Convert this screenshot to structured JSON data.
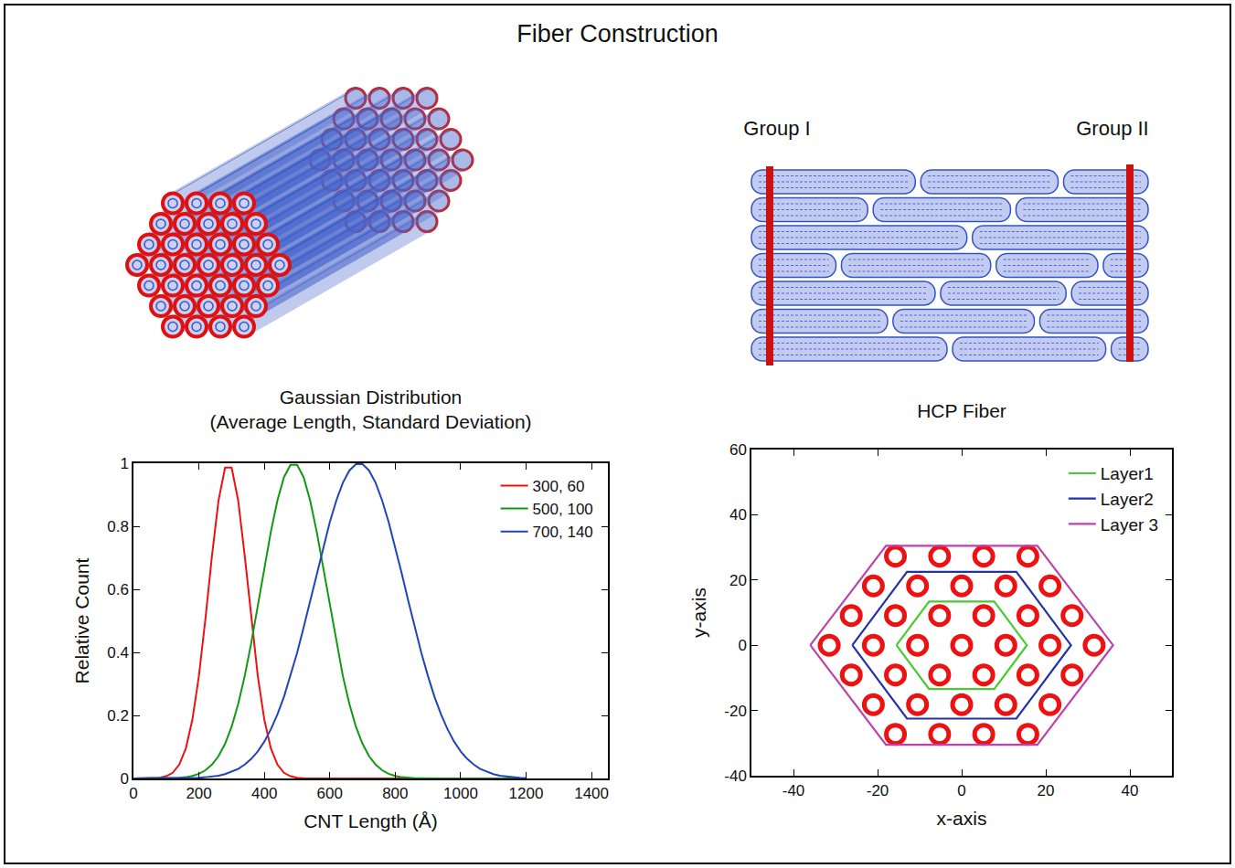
{
  "title": "Fiber Construction",
  "panels": {
    "side_view": {
      "group_labels": [
        "Group I",
        "Group II"
      ]
    }
  },
  "chart_data": [
    {
      "type": "line",
      "title": "Gaussian Distribution",
      "subtitle": "(Average Length, Standard Deviation)",
      "x_label": "CNT Length (Å)",
      "y_label": "Relative Count",
      "x": [
        0,
        20,
        40,
        60,
        80,
        100,
        120,
        140,
        160,
        180,
        200,
        220,
        240,
        260,
        280,
        300,
        320,
        340,
        360,
        380,
        400,
        420,
        440,
        460,
        480,
        500,
        520,
        540,
        560,
        580,
        600,
        620,
        640,
        660,
        680,
        700,
        720,
        740,
        760,
        780,
        800,
        820,
        840,
        860,
        880,
        900,
        920,
        940,
        960,
        980,
        1000,
        1020,
        1040,
        1060,
        1080,
        1100,
        1120,
        1140,
        1160,
        1180,
        1200
      ],
      "series": [
        {
          "name": "300, 60",
          "color": "#ee1111",
          "values": [
            0,
            0,
            0,
            0.001,
            0.002,
            0.007,
            0.018,
            0.044,
            0.095,
            0.186,
            0.325,
            0.507,
            0.707,
            0.882,
            0.986,
            0.986,
            0.882,
            0.707,
            0.507,
            0.325,
            0.186,
            0.095,
            0.044,
            0.018,
            0.007,
            0.002,
            0.001,
            0,
            0,
            0,
            0,
            0,
            0,
            0,
            0,
            0,
            0,
            0,
            0,
            0,
            0,
            0,
            0,
            0,
            0,
            0,
            0,
            0,
            0,
            0,
            0,
            0,
            0,
            0,
            0,
            0,
            0,
            0,
            0,
            0,
            0
          ]
        },
        {
          "name": "500, 100",
          "color": "#119911",
          "values": [
            0,
            0,
            0,
            0,
            0,
            0.001,
            0.001,
            0.002,
            0.004,
            0.008,
            0.015,
            0.026,
            0.044,
            0.071,
            0.11,
            0.164,
            0.236,
            0.325,
            0.43,
            0.546,
            0.667,
            0.783,
            0.882,
            0.956,
            0.995,
            0.995,
            0.956,
            0.882,
            0.783,
            0.667,
            0.546,
            0.43,
            0.325,
            0.236,
            0.164,
            0.11,
            0.071,
            0.044,
            0.026,
            0.015,
            0.008,
            0.004,
            0.002,
            0.001,
            0.001,
            0,
            0,
            0,
            0,
            0,
            0,
            0,
            0,
            0,
            0,
            0,
            0,
            0,
            0,
            0,
            0
          ]
        },
        {
          "name": "700, 140",
          "color": "#2244bb",
          "values": [
            0,
            0,
            0,
            0,
            0,
            0,
            0,
            0,
            0.001,
            0.001,
            0.002,
            0.004,
            0.006,
            0.009,
            0.014,
            0.021,
            0.03,
            0.044,
            0.062,
            0.086,
            0.117,
            0.156,
            0.203,
            0.259,
            0.325,
            0.398,
            0.479,
            0.563,
            0.65,
            0.734,
            0.813,
            0.882,
            0.938,
            0.977,
            0.997,
            0.997,
            0.977,
            0.938,
            0.882,
            0.813,
            0.734,
            0.65,
            0.563,
            0.479,
            0.398,
            0.325,
            0.259,
            0.203,
            0.156,
            0.117,
            0.086,
            0.062,
            0.044,
            0.03,
            0.021,
            0.014,
            0.009,
            0.006,
            0.004,
            0.002,
            0.001
          ]
        }
      ],
      "xlim": [
        0,
        1450
      ],
      "xticks": [
        0,
        200,
        400,
        600,
        800,
        1000,
        1200,
        1400
      ],
      "ylim": [
        0,
        1
      ],
      "yticks": [
        0,
        0.2,
        0.4,
        0.6,
        0.8,
        1
      ],
      "grid": false,
      "legend": "top right"
    },
    {
      "type": "scatter",
      "title": "HCP Fiber",
      "x_label": "x-axis",
      "y_label": "y-axis",
      "series": [
        {
          "type": "scatter",
          "color": "#ee1111",
          "marker": "circle-open",
          "x": [
            -15.75,
            -5.25,
            5.25,
            15.75,
            -21,
            -10.5,
            0,
            10.5,
            21,
            -26.25,
            -15.75,
            -5.25,
            5.25,
            15.75,
            26.25,
            -31.5,
            -21,
            -10.5,
            0,
            10.5,
            21,
            31.5,
            -26.25,
            -15.75,
            -5.25,
            5.25,
            15.75,
            26.25,
            -21,
            -10.5,
            0,
            10.5,
            21,
            -15.75,
            -5.25,
            5.25,
            15.75
          ],
          "y": [
            27.3,
            27.3,
            27.3,
            27.3,
            18.2,
            18.2,
            18.2,
            18.2,
            18.2,
            9.1,
            9.1,
            9.1,
            9.1,
            9.1,
            9.1,
            0,
            0,
            0,
            0,
            0,
            0,
            0,
            -9.1,
            -9.1,
            -9.1,
            -9.1,
            -9.1,
            -9.1,
            -18.2,
            -18.2,
            -18.2,
            -18.2,
            -18.2,
            -27.3,
            -27.3,
            -27.3,
            -27.3
          ]
        },
        {
          "name": "Layer1",
          "type": "line",
          "color": "#44cc33",
          "x": [
            -15.5,
            -7.75,
            7.75,
            15.5,
            7.75,
            -7.75,
            -15.5
          ],
          "y": [
            0,
            13.4,
            13.4,
            0,
            -13.4,
            -13.4,
            0
          ]
        },
        {
          "name": "Layer2",
          "type": "line",
          "color": "#2233aa",
          "x": [
            -26,
            -13,
            13,
            26,
            13,
            -13,
            -26
          ],
          "y": [
            0,
            22.5,
            22.5,
            0,
            -22.5,
            -22.5,
            0
          ]
        },
        {
          "name": "Layer 3",
          "type": "line",
          "color": "#bb44aa",
          "x": [
            -36,
            -18,
            18,
            36,
            18,
            -18,
            -36
          ],
          "y": [
            0,
            30.5,
            30.5,
            0,
            -30.5,
            -30.5,
            0
          ]
        }
      ],
      "xlim": [
        -50,
        50
      ],
      "xticks": [
        -40,
        -20,
        0,
        20,
        40
      ],
      "ylim": [
        -40,
        60
      ],
      "yticks": [
        -40,
        -20,
        0,
        20,
        40,
        60
      ],
      "grid": false,
      "legend": "top right"
    }
  ]
}
